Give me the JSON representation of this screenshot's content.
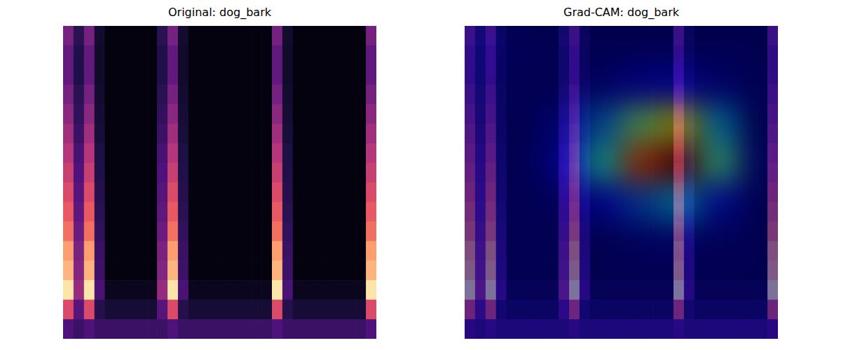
{
  "chart_data": [
    {
      "type": "heatmap",
      "title": "Original: dog_bark",
      "tick_labels": false,
      "cells": [
        [
          0.35,
          0.16,
          0.35,
          0.09,
          0.02,
          0.02,
          0.02,
          0.02,
          0.02,
          0.16,
          0.35,
          0.09,
          0.02,
          0.02,
          0.02,
          0.02,
          0.02,
          0.02,
          0.02,
          0.02,
          0.35,
          0.09,
          0.02,
          0.02,
          0.02,
          0.02,
          0.02,
          0.02,
          0.02,
          0.35
        ],
        [
          0.3,
          0.14,
          0.3,
          0.08,
          0.02,
          0.02,
          0.02,
          0.02,
          0.02,
          0.14,
          0.3,
          0.08,
          0.02,
          0.02,
          0.02,
          0.02,
          0.02,
          0.02,
          0.02,
          0.02,
          0.3,
          0.08,
          0.02,
          0.02,
          0.02,
          0.02,
          0.02,
          0.02,
          0.02,
          0.3
        ],
        [
          0.3,
          0.14,
          0.3,
          0.08,
          0.02,
          0.02,
          0.02,
          0.02,
          0.02,
          0.14,
          0.3,
          0.08,
          0.02,
          0.02,
          0.02,
          0.02,
          0.02,
          0.02,
          0.02,
          0.02,
          0.3,
          0.08,
          0.02,
          0.02,
          0.02,
          0.02,
          0.02,
          0.02,
          0.02,
          0.3
        ],
        [
          0.35,
          0.16,
          0.35,
          0.09,
          0.02,
          0.02,
          0.02,
          0.02,
          0.02,
          0.16,
          0.35,
          0.09,
          0.02,
          0.02,
          0.02,
          0.02,
          0.02,
          0.02,
          0.02,
          0.02,
          0.35,
          0.09,
          0.02,
          0.02,
          0.02,
          0.02,
          0.02,
          0.02,
          0.02,
          0.35
        ],
        [
          0.4,
          0.18,
          0.4,
          0.1,
          0.02,
          0.02,
          0.02,
          0.02,
          0.02,
          0.18,
          0.4,
          0.1,
          0.02,
          0.02,
          0.02,
          0.02,
          0.02,
          0.02,
          0.02,
          0.02,
          0.4,
          0.1,
          0.02,
          0.02,
          0.02,
          0.02,
          0.02,
          0.02,
          0.02,
          0.4
        ],
        [
          0.45,
          0.2,
          0.45,
          0.11,
          0.02,
          0.02,
          0.02,
          0.02,
          0.02,
          0.2,
          0.45,
          0.11,
          0.02,
          0.02,
          0.02,
          0.02,
          0.02,
          0.02,
          0.02,
          0.02,
          0.45,
          0.11,
          0.02,
          0.02,
          0.02,
          0.02,
          0.02,
          0.02,
          0.02,
          0.45
        ],
        [
          0.5,
          0.23,
          0.5,
          0.13,
          0.02,
          0.02,
          0.02,
          0.02,
          0.02,
          0.23,
          0.5,
          0.13,
          0.02,
          0.02,
          0.02,
          0.02,
          0.02,
          0.02,
          0.02,
          0.02,
          0.5,
          0.13,
          0.02,
          0.02,
          0.02,
          0.02,
          0.02,
          0.02,
          0.02,
          0.5
        ],
        [
          0.55,
          0.25,
          0.55,
          0.14,
          0.02,
          0.02,
          0.02,
          0.02,
          0.02,
          0.25,
          0.55,
          0.14,
          0.02,
          0.02,
          0.02,
          0.02,
          0.02,
          0.02,
          0.02,
          0.02,
          0.55,
          0.14,
          0.02,
          0.02,
          0.02,
          0.02,
          0.02,
          0.02,
          0.02,
          0.55
        ],
        [
          0.6,
          0.27,
          0.6,
          0.15,
          0.02,
          0.02,
          0.02,
          0.02,
          0.02,
          0.27,
          0.6,
          0.15,
          0.02,
          0.02,
          0.02,
          0.02,
          0.02,
          0.02,
          0.02,
          0.02,
          0.6,
          0.15,
          0.02,
          0.02,
          0.02,
          0.02,
          0.02,
          0.02,
          0.02,
          0.6
        ],
        [
          0.65,
          0.29,
          0.65,
          0.16,
          0.02,
          0.02,
          0.02,
          0.02,
          0.02,
          0.29,
          0.65,
          0.16,
          0.02,
          0.02,
          0.02,
          0.02,
          0.02,
          0.02,
          0.02,
          0.02,
          0.65,
          0.16,
          0.02,
          0.02,
          0.02,
          0.02,
          0.02,
          0.02,
          0.02,
          0.65
        ],
        [
          0.7,
          0.32,
          0.7,
          0.18,
          0.02,
          0.02,
          0.02,
          0.02,
          0.02,
          0.32,
          0.7,
          0.18,
          0.02,
          0.02,
          0.02,
          0.02,
          0.02,
          0.02,
          0.02,
          0.02,
          0.7,
          0.18,
          0.02,
          0.02,
          0.02,
          0.02,
          0.02,
          0.02,
          0.02,
          0.7
        ],
        [
          0.8,
          0.36,
          0.8,
          0.2,
          0.02,
          0.02,
          0.02,
          0.02,
          0.02,
          0.36,
          0.8,
          0.2,
          0.02,
          0.02,
          0.02,
          0.02,
          0.02,
          0.02,
          0.02,
          0.02,
          0.8,
          0.2,
          0.02,
          0.02,
          0.02,
          0.02,
          0.02,
          0.02,
          0.02,
          0.8
        ],
        [
          0.85,
          0.38,
          0.85,
          0.21,
          0.02,
          0.02,
          0.02,
          0.02,
          0.02,
          0.38,
          0.85,
          0.21,
          0.02,
          0.02,
          0.02,
          0.02,
          0.02,
          0.02,
          0.02,
          0.02,
          0.85,
          0.21,
          0.02,
          0.02,
          0.02,
          0.02,
          0.02,
          0.02,
          0.02,
          0.85
        ],
        [
          0.95,
          0.43,
          0.95,
          0.24,
          0.05,
          0.05,
          0.05,
          0.05,
          0.05,
          0.43,
          0.95,
          0.24,
          0.05,
          0.05,
          0.05,
          0.05,
          0.05,
          0.05,
          0.05,
          0.05,
          0.95,
          0.24,
          0.05,
          0.05,
          0.05,
          0.05,
          0.05,
          0.05,
          0.05,
          0.95
        ],
        [
          0.6,
          0.27,
          0.6,
          0.15,
          0.1,
          0.1,
          0.1,
          0.1,
          0.1,
          0.27,
          0.6,
          0.15,
          0.1,
          0.1,
          0.1,
          0.1,
          0.1,
          0.1,
          0.1,
          0.1,
          0.6,
          0.15,
          0.1,
          0.1,
          0.1,
          0.1,
          0.1,
          0.1,
          0.1,
          0.6
        ],
        [
          0.25,
          0.2,
          0.25,
          0.2,
          0.2,
          0.2,
          0.2,
          0.2,
          0.2,
          0.2,
          0.25,
          0.2,
          0.2,
          0.2,
          0.2,
          0.2,
          0.2,
          0.2,
          0.2,
          0.2,
          0.25,
          0.2,
          0.2,
          0.2,
          0.2,
          0.2,
          0.2,
          0.2,
          0.2,
          0.25
        ]
      ]
    },
    {
      "type": "heatmap",
      "title": "Grad-CAM: dog_bark",
      "tick_labels": false,
      "cells": [
        [
          0.35,
          0.16,
          0.35,
          0.09,
          0.02,
          0.02,
          0.02,
          0.02,
          0.02,
          0.16,
          0.35,
          0.09,
          0.02,
          0.02,
          0.02,
          0.02,
          0.02,
          0.02,
          0.02,
          0.02,
          0.35,
          0.09,
          0.02,
          0.02,
          0.02,
          0.02,
          0.02,
          0.02,
          0.02,
          0.35
        ],
        [
          0.3,
          0.14,
          0.3,
          0.08,
          0.02,
          0.02,
          0.02,
          0.02,
          0.02,
          0.14,
          0.3,
          0.08,
          0.02,
          0.02,
          0.02,
          0.02,
          0.02,
          0.02,
          0.02,
          0.02,
          0.3,
          0.08,
          0.02,
          0.02,
          0.02,
          0.02,
          0.02,
          0.02,
          0.02,
          0.3
        ],
        [
          0.3,
          0.14,
          0.3,
          0.08,
          0.02,
          0.02,
          0.02,
          0.02,
          0.02,
          0.14,
          0.3,
          0.08,
          0.02,
          0.02,
          0.02,
          0.02,
          0.02,
          0.02,
          0.02,
          0.02,
          0.3,
          0.08,
          0.02,
          0.02,
          0.02,
          0.02,
          0.02,
          0.02,
          0.02,
          0.3
        ],
        [
          0.35,
          0.16,
          0.35,
          0.09,
          0.02,
          0.02,
          0.02,
          0.02,
          0.02,
          0.16,
          0.35,
          0.09,
          0.02,
          0.02,
          0.02,
          0.02,
          0.02,
          0.02,
          0.02,
          0.02,
          0.35,
          0.09,
          0.02,
          0.02,
          0.02,
          0.02,
          0.02,
          0.02,
          0.02,
          0.35
        ],
        [
          0.4,
          0.18,
          0.4,
          0.1,
          0.02,
          0.02,
          0.02,
          0.02,
          0.02,
          0.18,
          0.4,
          0.1,
          0.02,
          0.02,
          0.02,
          0.02,
          0.02,
          0.02,
          0.02,
          0.02,
          0.4,
          0.1,
          0.02,
          0.02,
          0.02,
          0.02,
          0.02,
          0.02,
          0.02,
          0.4
        ],
        [
          0.45,
          0.2,
          0.45,
          0.11,
          0.02,
          0.02,
          0.02,
          0.02,
          0.02,
          0.2,
          0.45,
          0.11,
          0.02,
          0.02,
          0.02,
          0.02,
          0.02,
          0.02,
          0.02,
          0.02,
          0.45,
          0.11,
          0.02,
          0.02,
          0.02,
          0.02,
          0.02,
          0.02,
          0.02,
          0.45
        ],
        [
          0.5,
          0.23,
          0.5,
          0.13,
          0.02,
          0.02,
          0.02,
          0.02,
          0.02,
          0.23,
          0.5,
          0.13,
          0.02,
          0.02,
          0.02,
          0.02,
          0.02,
          0.02,
          0.02,
          0.02,
          0.5,
          0.13,
          0.02,
          0.02,
          0.02,
          0.02,
          0.02,
          0.02,
          0.02,
          0.5
        ],
        [
          0.55,
          0.25,
          0.55,
          0.14,
          0.02,
          0.02,
          0.02,
          0.02,
          0.02,
          0.25,
          0.55,
          0.14,
          0.02,
          0.02,
          0.02,
          0.02,
          0.02,
          0.02,
          0.02,
          0.02,
          0.55,
          0.14,
          0.02,
          0.02,
          0.02,
          0.02,
          0.02,
          0.02,
          0.02,
          0.55
        ],
        [
          0.6,
          0.27,
          0.6,
          0.15,
          0.02,
          0.02,
          0.02,
          0.02,
          0.02,
          0.27,
          0.6,
          0.15,
          0.02,
          0.02,
          0.02,
          0.02,
          0.02,
          0.02,
          0.02,
          0.02,
          0.6,
          0.15,
          0.02,
          0.02,
          0.02,
          0.02,
          0.02,
          0.02,
          0.02,
          0.6
        ],
        [
          0.65,
          0.29,
          0.65,
          0.16,
          0.02,
          0.02,
          0.02,
          0.02,
          0.02,
          0.29,
          0.65,
          0.16,
          0.02,
          0.02,
          0.02,
          0.02,
          0.02,
          0.02,
          0.02,
          0.02,
          0.65,
          0.16,
          0.02,
          0.02,
          0.02,
          0.02,
          0.02,
          0.02,
          0.02,
          0.65
        ],
        [
          0.7,
          0.32,
          0.7,
          0.18,
          0.02,
          0.02,
          0.02,
          0.02,
          0.02,
          0.32,
          0.7,
          0.18,
          0.02,
          0.02,
          0.02,
          0.02,
          0.02,
          0.02,
          0.02,
          0.02,
          0.7,
          0.18,
          0.02,
          0.02,
          0.02,
          0.02,
          0.02,
          0.02,
          0.02,
          0.7
        ],
        [
          0.8,
          0.36,
          0.8,
          0.2,
          0.02,
          0.02,
          0.02,
          0.02,
          0.02,
          0.36,
          0.8,
          0.2,
          0.02,
          0.02,
          0.02,
          0.02,
          0.02,
          0.02,
          0.02,
          0.02,
          0.8,
          0.2,
          0.02,
          0.02,
          0.02,
          0.02,
          0.02,
          0.02,
          0.02,
          0.8
        ],
        [
          0.85,
          0.38,
          0.85,
          0.21,
          0.02,
          0.02,
          0.02,
          0.02,
          0.02,
          0.38,
          0.85,
          0.21,
          0.02,
          0.02,
          0.02,
          0.02,
          0.02,
          0.02,
          0.02,
          0.02,
          0.85,
          0.21,
          0.02,
          0.02,
          0.02,
          0.02,
          0.02,
          0.02,
          0.02,
          0.85
        ],
        [
          0.95,
          0.43,
          0.95,
          0.24,
          0.05,
          0.05,
          0.05,
          0.05,
          0.05,
          0.43,
          0.95,
          0.24,
          0.05,
          0.05,
          0.05,
          0.05,
          0.05,
          0.05,
          0.05,
          0.05,
          0.95,
          0.24,
          0.05,
          0.05,
          0.05,
          0.05,
          0.05,
          0.05,
          0.05,
          0.95
        ],
        [
          0.6,
          0.27,
          0.6,
          0.15,
          0.1,
          0.1,
          0.1,
          0.1,
          0.1,
          0.27,
          0.6,
          0.15,
          0.1,
          0.1,
          0.1,
          0.1,
          0.1,
          0.1,
          0.1,
          0.1,
          0.6,
          0.15,
          0.1,
          0.1,
          0.1,
          0.1,
          0.1,
          0.1,
          0.1,
          0.6
        ],
        [
          0.25,
          0.2,
          0.25,
          0.2,
          0.2,
          0.2,
          0.2,
          0.2,
          0.2,
          0.2,
          0.25,
          0.2,
          0.2,
          0.2,
          0.2,
          0.2,
          0.2,
          0.2,
          0.2,
          0.2,
          0.25,
          0.2,
          0.2,
          0.2,
          0.2,
          0.2,
          0.2,
          0.2,
          0.2,
          0.25
        ]
      ],
      "cam": [
        [
          0.05,
          0.03,
          0.02,
          0.02,
          0.02,
          0.02,
          0.02,
          0.02
        ],
        [
          0.03,
          0.02,
          0.02,
          0.05,
          0.1,
          0.12,
          0.06,
          0.02
        ],
        [
          0.02,
          0.02,
          0.08,
          0.25,
          0.5,
          0.65,
          0.3,
          0.02
        ],
        [
          0.02,
          0.02,
          0.12,
          0.4,
          0.8,
          1.0,
          0.45,
          0.04
        ],
        [
          0.02,
          0.02,
          0.04,
          0.12,
          0.22,
          0.32,
          0.14,
          0.02
        ],
        [
          0.02,
          0.02,
          0.02,
          0.02,
          0.04,
          0.05,
          0.03,
          0.02
        ],
        [
          0.02,
          0.02,
          0.02,
          0.02,
          0.02,
          0.02,
          0.02,
          0.02
        ],
        [
          0.02,
          0.02,
          0.02,
          0.02,
          0.02,
          0.02,
          0.02,
          0.02
        ]
      ]
    }
  ]
}
